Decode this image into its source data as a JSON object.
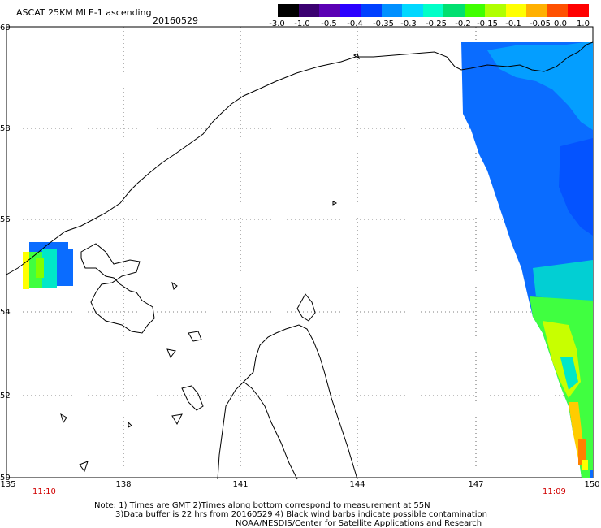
{
  "header": {
    "title": "ASCAT 25KM MLE-1 ascending",
    "date": "20160529"
  },
  "colorbar": {
    "colors": [
      "#000000",
      "#3a0070",
      "#5a00b4",
      "#2a00ff",
      "#0040ff",
      "#0090ff",
      "#00d8ff",
      "#00ffc8",
      "#00e070",
      "#40ff00",
      "#b0ff00",
      "#ffff00",
      "#ffb000",
      "#ff5000",
      "#ff0000"
    ],
    "tick_labels": [
      "-3.0",
      "-1.0",
      "-0.5",
      "-0.4",
      "-0.35",
      "-0.3",
      "-0.25",
      "-0.2",
      "-0.15",
      "-0.1",
      "-0.05",
      "0.0",
      "1.0"
    ]
  },
  "axes": {
    "lat_labels": [
      "60",
      "58",
      "56",
      "54",
      "52",
      "50"
    ],
    "lon_labels": [
      "135",
      "138",
      "141",
      "144",
      "147",
      "150"
    ]
  },
  "times": {
    "left": "11:10",
    "right": "11:09"
  },
  "notes": {
    "line1": "Note: 1) Times are GMT 2)Times along bottom correspond to measurement at 55N",
    "line2": "3)Data buffer is 22 hrs from 20160529 4) Black wind barbs indicate possible contamination",
    "line3": "NOAA/NESDIS/Center for Satellite Applications and Research"
  }
}
